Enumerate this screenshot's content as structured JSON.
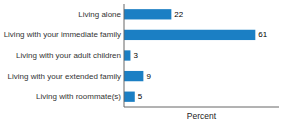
{
  "chart_data": {
    "type": "bar",
    "orientation": "horizontal",
    "categories": [
      "Living with roommate(s)",
      "Living with your extended family",
      "Living with your adult children",
      "Living with your immediate family",
      "Living alone"
    ],
    "values": [
      5,
      9,
      3,
      61,
      22
    ],
    "color": "#1b7fc4",
    "xlabel": "Percent",
    "xlim": [
      0,
      72
    ],
    "data_labels": true,
    "tick_labels": "y",
    "grid": false
  }
}
